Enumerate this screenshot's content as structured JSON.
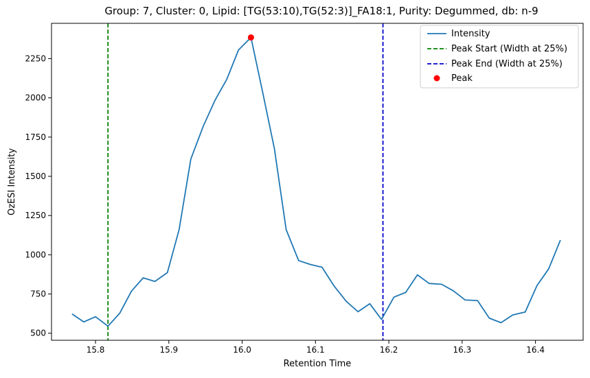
{
  "chart_data": {
    "type": "line",
    "title": "Group: 7, Cluster: 0, Lipid: [TG(53:10),TG(52:3)]_FA18:1, Purity: Degummed, db: n-9",
    "xlabel": "Retention Time",
    "ylabel": "OzESI Intensity",
    "xlim": [
      15.74,
      16.465
    ],
    "ylim": [
      455,
      2475
    ],
    "xticks": [
      15.8,
      15.9,
      16.0,
      16.1,
      16.2,
      16.3,
      16.4
    ],
    "xtick_labels": [
      "15.8",
      "15.9",
      "16.0",
      "16.1",
      "16.2",
      "16.3",
      "16.4"
    ],
    "yticks": [
      500,
      750,
      1000,
      1250,
      1500,
      1750,
      2000,
      2250
    ],
    "ytick_labels": [
      "500",
      "750",
      "1000",
      "1250",
      "1500",
      "1750",
      "2000",
      "2250"
    ],
    "grid": false,
    "legend_position": "top-right",
    "series": [
      {
        "name": "Intensity",
        "color": "#1f77b4",
        "x": [
          15.768,
          15.784,
          15.8,
          15.817,
          15.833,
          15.849,
          15.865,
          15.881,
          15.898,
          15.914,
          15.93,
          15.947,
          15.963,
          15.979,
          15.995,
          16.012,
          16.028,
          16.044,
          16.06,
          16.077,
          16.093,
          16.109,
          16.125,
          16.142,
          16.158,
          16.174,
          16.19,
          16.207,
          16.223,
          16.239,
          16.255,
          16.272,
          16.288,
          16.304,
          16.321,
          16.337,
          16.353,
          16.369,
          16.386,
          16.402,
          16.418,
          16.434
        ],
        "y": [
          623,
          572,
          605,
          545,
          627,
          768,
          853,
          830,
          886,
          1160,
          1610,
          1820,
          1985,
          2118,
          2305,
          2385,
          2035,
          1675,
          1160,
          963,
          938,
          920,
          803,
          703,
          637,
          688,
          588,
          730,
          760,
          872,
          817,
          812,
          770,
          712,
          708,
          596,
          567,
          616,
          635,
          803,
          910,
          1093
        ]
      },
      {
        "name": "Peak Start (Width at 25%)",
        "color": "#008000",
        "style": "dashed-vertical",
        "x": 15.817
      },
      {
        "name": "Peak End (Width at 25%)",
        "color": "#0000cc",
        "style": "dashed-vertical",
        "x": 16.192
      },
      {
        "name": "Peak",
        "color": "#ff0000",
        "style": "marker",
        "x": 16.012,
        "y": 2385
      }
    ]
  }
}
